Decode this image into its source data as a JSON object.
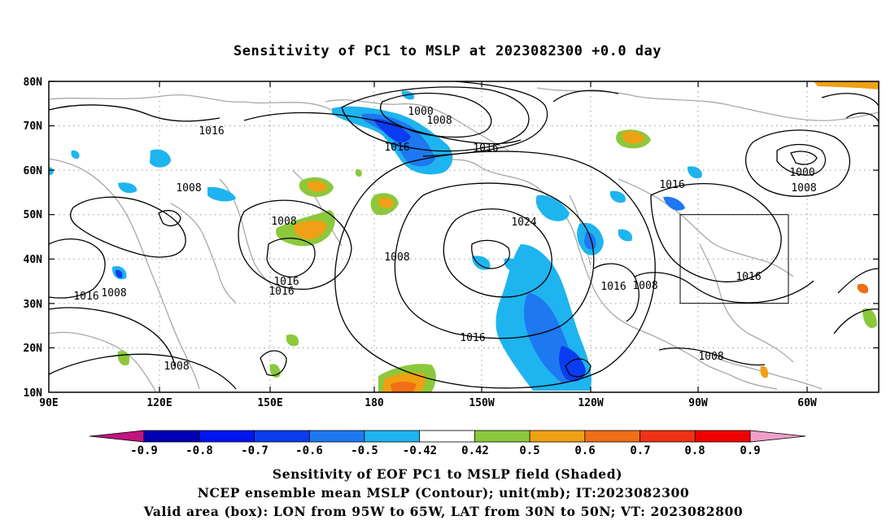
{
  "title": "Sensitivity of PC1 to MSLP at 2023082300 +0.0 day",
  "latitudes": [
    "80N",
    "70N",
    "60N",
    "50N",
    "40N",
    "30N",
    "20N",
    "10N"
  ],
  "longitudes": [
    "90E",
    "120E",
    "150E",
    "180",
    "150W",
    "120W",
    "90W",
    "60W"
  ],
  "contour_labels": [
    {
      "text": "1000",
      "color": "#000000"
    },
    {
      "text": "1008",
      "color": "#000000"
    },
    {
      "text": "1016",
      "color": "#000000"
    },
    {
      "text": "1016",
      "color": "#000000"
    },
    {
      "text": "1008",
      "color": "#000000"
    },
    {
      "text": "1016",
      "color": "#000000"
    },
    {
      "text": "1008",
      "color": "#000000"
    },
    {
      "text": "1024",
      "color": "#000000"
    },
    {
      "text": "1008",
      "color": "#000000"
    },
    {
      "text": "1016",
      "color": "#000000"
    },
    {
      "text": "1016",
      "color": "#000000"
    },
    {
      "text": "1016",
      "color": "#000000"
    },
    {
      "text": "1008",
      "color": "#000000"
    },
    {
      "text": "1008",
      "color": "#000000"
    },
    {
      "text": "1016",
      "color": "#000000"
    },
    {
      "text": "1016",
      "color": "#000000"
    },
    {
      "text": "1008",
      "color": "#000000"
    },
    {
      "text": "1016",
      "color": "#000000"
    },
    {
      "text": "1000",
      "color": "#000000"
    },
    {
      "text": "1008",
      "color": "#000000"
    },
    {
      "text": "1016",
      "color": "#000000"
    },
    {
      "text": "1008",
      "color": "#000000"
    }
  ],
  "colorbar": {
    "labels": [
      "-0.9",
      "-0.8",
      "-0.7",
      "-0.6",
      "-0.5",
      "-0.42",
      "0.42",
      "0.5",
      "0.6",
      "0.7",
      "0.8",
      "0.9"
    ],
    "colors": {
      "low_arrow": "#c0147f",
      "seg": [
        "#0000b4",
        "#0014f0",
        "#0a3cf0",
        "#1e78f0",
        "#1eb4f0",
        "#ffffff",
        "#8cc83c",
        "#f0a014",
        "#f06e14",
        "#f03214",
        "#f00000"
      ],
      "high_arrow": "#f0a0c8"
    }
  },
  "captions": [
    "Sensitivity of EOF PC1 to MSLP field (Shaded)",
    "NCEP ensemble mean MSLP (Contour); unit(mb); IT:2023082300",
    "Valid area (box): LON from 95W to 65W, LAT from 30N to 50N; VT: 2023082800"
  ]
}
